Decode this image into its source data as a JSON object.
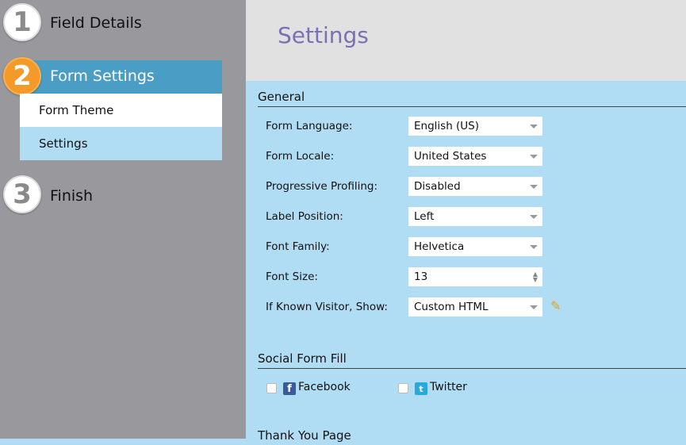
{
  "sidebar": {
    "steps": [
      {
        "number": "1",
        "label": "Field Details"
      },
      {
        "number": "2",
        "label": "Form Settings"
      },
      {
        "number": "3",
        "label": "Finish"
      }
    ],
    "subitems": [
      "Form Theme",
      "Settings"
    ]
  },
  "header": {
    "title": "Settings"
  },
  "general": {
    "heading": "General",
    "rows": [
      {
        "label": "Form Language:",
        "value": "English (US)"
      },
      {
        "label": "Form Locale:",
        "value": "United States"
      },
      {
        "label": "Progressive Profiling:",
        "value": "Disabled"
      },
      {
        "label": "Label Position:",
        "value": "Left"
      },
      {
        "label": "Font Family:",
        "value": "Helvetica"
      },
      {
        "label": "Font Size:",
        "value": "13"
      },
      {
        "label": "If Known Visitor, Show:",
        "value": "Custom HTML"
      }
    ]
  },
  "social": {
    "heading": "Social Form Fill",
    "facebook": "Facebook",
    "twitter": "Twitter",
    "facebook_checked": false,
    "twitter_checked": false
  },
  "thankyou": {
    "heading": "Thank You Page"
  },
  "colors": {
    "accent": "#4a9dc5",
    "step_active": "#f39a28",
    "title": "#7b70b2",
    "panel": "#b1ddf4"
  }
}
